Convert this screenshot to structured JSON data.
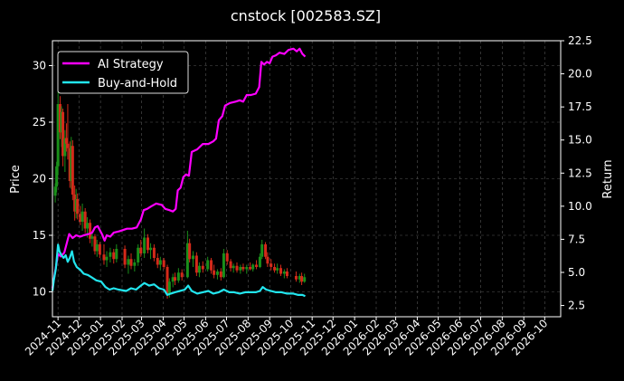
{
  "chart_data": {
    "type": "line",
    "title": "cnstock [002583.SZ]",
    "xlabel": "",
    "ylabel": "Price",
    "y2label": "Return",
    "x_ticks": [
      "2024-11",
      "2024-12",
      "2025-01",
      "2025-02",
      "2025-03",
      "2025-04",
      "2025-05",
      "2025-06",
      "2025-07",
      "2025-08",
      "2025-09",
      "2025-10",
      "2025-11",
      "2025-12",
      "2026-01",
      "2026-02",
      "2026-03",
      "2026-04",
      "2026-05",
      "2026-06",
      "2026-07",
      "2026-08",
      "2026-09",
      "2026-10"
    ],
    "x_range": [
      "2024-10-24",
      "2026-10-24"
    ],
    "y_ticks": [
      10,
      15,
      20,
      25,
      30
    ],
    "ylim": [
      7.8,
      32.2
    ],
    "y2_ticks": [
      "2.5",
      "5.0",
      "7.5",
      "10.0",
      "12.5",
      "15.0",
      "17.5",
      "20.0",
      "22.5"
    ],
    "y2lim": [
      1.65,
      22.5
    ],
    "grid": true,
    "legend_position": "top-left",
    "colors": {
      "background": "#000000",
      "up": "#1a8f1a",
      "down": "#d42a1a",
      "ai": "#ff00ff",
      "bh": "#22e5ee",
      "grid": "#555555"
    },
    "price_candles": [
      [
        "2024-10-28",
        18.5,
        19.6,
        17.9,
        19.3
      ],
      [
        "2024-10-30",
        19.3,
        21.5,
        18.8,
        21.1
      ],
      [
        "2024-11-01",
        21.1,
        28.0,
        20.3,
        26.6
      ],
      [
        "2024-11-04",
        26.6,
        27.3,
        23.5,
        24.1
      ],
      [
        "2024-11-06",
        24.1,
        26.4,
        22.8,
        25.9
      ],
      [
        "2024-11-08",
        25.9,
        26.2,
        21.1,
        22.0
      ],
      [
        "2024-11-11",
        22.0,
        24.3,
        20.6,
        23.6
      ],
      [
        "2024-11-13",
        23.6,
        24.9,
        22.4,
        23.1
      ],
      [
        "2024-11-15",
        23.1,
        26.6,
        21.7,
        22.7
      ],
      [
        "2024-11-18",
        22.7,
        23.3,
        19.2,
        19.8
      ],
      [
        "2024-11-20",
        19.8,
        23.7,
        19.1,
        22.9
      ],
      [
        "2024-11-22",
        22.9,
        23.4,
        18.1,
        18.6
      ],
      [
        "2024-11-25",
        18.6,
        19.4,
        16.3,
        17.1
      ],
      [
        "2024-11-27",
        17.1,
        19.1,
        16.5,
        18.2
      ],
      [
        "2024-11-29",
        18.2,
        18.7,
        16.4,
        16.9
      ],
      [
        "2024-12-03",
        16.9,
        17.6,
        15.9,
        16.2
      ],
      [
        "2024-12-06",
        16.2,
        17.8,
        15.4,
        17.1
      ],
      [
        "2024-12-10",
        17.1,
        17.4,
        15.2,
        15.6
      ],
      [
        "2024-12-13",
        15.6,
        16.6,
        14.8,
        16.1
      ],
      [
        "2024-12-17",
        16.1,
        16.4,
        14.3,
        14.7
      ],
      [
        "2024-12-20",
        14.7,
        15.3,
        14.0,
        14.9
      ],
      [
        "2024-12-24",
        14.9,
        15.1,
        13.3,
        13.6
      ],
      [
        "2024-12-27",
        13.6,
        14.6,
        13.1,
        14.2
      ],
      [
        "2024-12-31",
        14.2,
        14.4,
        13.0,
        13.3
      ],
      [
        "2025-01-06",
        13.3,
        14.2,
        12.4,
        12.8
      ],
      [
        "2025-01-10",
        12.8,
        13.6,
        12.2,
        13.1
      ],
      [
        "2025-01-15",
        13.1,
        13.9,
        12.6,
        13.5
      ],
      [
        "2025-01-20",
        13.5,
        13.8,
        12.5,
        12.9
      ],
      [
        "2025-01-24",
        12.9,
        14.2,
        12.6,
        13.8
      ],
      [
        "2025-02-05",
        13.8,
        14.1,
        12.1,
        12.4
      ],
      [
        "2025-02-10",
        12.4,
        13.2,
        11.6,
        12.9
      ],
      [
        "2025-02-14",
        12.9,
        13.4,
        12.0,
        12.3
      ],
      [
        "2025-02-19",
        12.3,
        12.9,
        11.8,
        12.6
      ],
      [
        "2025-02-24",
        12.6,
        14.2,
        12.3,
        13.9
      ],
      [
        "2025-02-28",
        13.9,
        14.6,
        13.1,
        13.4
      ],
      [
        "2025-03-05",
        13.4,
        15.6,
        13.0,
        14.8
      ],
      [
        "2025-03-10",
        14.8,
        15.1,
        13.4,
        13.7
      ],
      [
        "2025-03-14",
        13.7,
        14.3,
        12.9,
        13.9
      ],
      [
        "2025-03-19",
        13.9,
        14.2,
        12.7,
        13.0
      ],
      [
        "2025-03-24",
        13.0,
        13.4,
        12.1,
        12.4
      ],
      [
        "2025-03-28",
        12.4,
        13.1,
        11.9,
        12.8
      ],
      [
        "2025-04-02",
        12.8,
        13.0,
        12.0,
        12.2
      ],
      [
        "2025-04-07",
        12.2,
        12.4,
        9.4,
        9.8
      ],
      [
        "2025-04-10",
        9.8,
        11.2,
        9.5,
        10.9
      ],
      [
        "2025-04-15",
        10.9,
        11.6,
        10.4,
        11.3
      ],
      [
        "2025-04-18",
        11.3,
        11.7,
        10.6,
        11.0
      ],
      [
        "2025-04-23",
        11.0,
        12.1,
        10.8,
        11.7
      ],
      [
        "2025-04-28",
        11.7,
        12.0,
        11.0,
        11.3
      ],
      [
        "2025-05-06",
        11.3,
        15.4,
        11.2,
        14.3
      ],
      [
        "2025-05-09",
        14.3,
        14.7,
        12.6,
        12.9
      ],
      [
        "2025-05-14",
        12.9,
        13.6,
        12.2,
        13.2
      ],
      [
        "2025-05-19",
        13.2,
        13.5,
        11.4,
        11.7
      ],
      [
        "2025-05-23",
        11.7,
        12.6,
        11.3,
        12.3
      ],
      [
        "2025-05-28",
        12.3,
        12.7,
        11.7,
        12.0
      ],
      [
        "2025-06-04",
        12.0,
        13.1,
        11.8,
        12.8
      ],
      [
        "2025-06-09",
        12.8,
        13.0,
        11.6,
        11.9
      ],
      [
        "2025-06-13",
        11.9,
        12.4,
        11.2,
        11.5
      ],
      [
        "2025-06-18",
        11.5,
        12.0,
        11.1,
        11.8
      ],
      [
        "2025-06-23",
        11.8,
        12.1,
        11.0,
        11.3
      ],
      [
        "2025-06-27",
        11.3,
        13.8,
        11.2,
        13.4
      ],
      [
        "2025-07-02",
        13.4,
        13.7,
        12.4,
        12.7
      ],
      [
        "2025-07-07",
        12.7,
        12.9,
        11.8,
        12.1
      ],
      [
        "2025-07-11",
        12.1,
        12.5,
        11.7,
        12.3
      ],
      [
        "2025-07-16",
        12.3,
        12.6,
        11.7,
        11.9
      ],
      [
        "2025-07-21",
        11.9,
        12.4,
        11.6,
        12.2
      ],
      [
        "2025-07-25",
        12.2,
        12.5,
        11.8,
        12.0
      ],
      [
        "2025-07-30",
        12.0,
        12.4,
        11.6,
        12.2
      ],
      [
        "2025-08-04",
        12.2,
        12.6,
        11.9,
        12.0
      ],
      [
        "2025-08-08",
        12.0,
        12.5,
        11.8,
        12.4
      ],
      [
        "2025-08-13",
        12.4,
        12.8,
        12.0,
        12.2
      ],
      [
        "2025-08-18",
        12.2,
        13.4,
        12.1,
        13.1
      ],
      [
        "2025-08-21",
        13.1,
        14.6,
        12.9,
        14.2
      ],
      [
        "2025-08-26",
        14.2,
        14.4,
        12.9,
        13.1
      ],
      [
        "2025-08-29",
        13.1,
        13.5,
        12.2,
        12.5
      ],
      [
        "2025-09-03",
        12.5,
        12.9,
        11.9,
        12.2
      ],
      [
        "2025-09-08",
        12.2,
        12.5,
        11.7,
        11.9
      ],
      [
        "2025-09-12",
        11.9,
        12.5,
        11.6,
        12.1
      ],
      [
        "2025-09-17",
        12.1,
        12.4,
        11.4,
        11.6
      ],
      [
        "2025-09-22",
        11.6,
        12.0,
        11.2,
        11.8
      ],
      [
        "2025-09-26",
        11.8,
        12.1,
        11.2,
        11.4
      ],
      [
        "2025-10-09",
        11.4,
        11.8,
        10.9,
        11.1
      ],
      [
        "2025-10-14",
        11.1,
        11.6,
        10.8,
        11.4
      ],
      [
        "2025-10-17",
        11.4,
        11.7,
        10.6,
        10.9
      ],
      [
        "2025-10-21",
        10.9,
        11.6,
        10.8,
        11.3
      ]
    ],
    "series": [
      {
        "name": "AI Strategy",
        "points": [
          [
            "2024-10-24",
            3.8
          ],
          [
            "2024-10-29",
            5.4
          ],
          [
            "2024-11-01",
            6.4
          ],
          [
            "2024-11-05",
            6.2
          ],
          [
            "2024-11-10",
            6.5
          ],
          [
            "2024-11-14",
            7.3
          ],
          [
            "2024-11-17",
            7.9
          ],
          [
            "2024-11-22",
            7.6
          ],
          [
            "2024-11-27",
            7.8
          ],
          [
            "2024-12-03",
            7.7
          ],
          [
            "2024-12-08",
            7.8
          ],
          [
            "2024-12-15",
            7.9
          ],
          [
            "2024-12-20",
            8.0
          ],
          [
            "2024-12-24",
            8.4
          ],
          [
            "2024-12-28",
            8.5
          ],
          [
            "2025-01-03",
            7.9
          ],
          [
            "2025-01-07",
            7.4
          ],
          [
            "2025-01-10",
            7.8
          ],
          [
            "2025-01-15",
            7.7
          ],
          [
            "2025-01-20",
            8.0
          ],
          [
            "2025-01-28",
            8.1
          ],
          [
            "2025-02-08",
            8.3
          ],
          [
            "2025-02-15",
            8.3
          ],
          [
            "2025-02-22",
            8.4
          ],
          [
            "2025-02-28",
            9.0
          ],
          [
            "2025-03-04",
            9.7
          ],
          [
            "2025-03-09",
            9.8
          ],
          [
            "2025-03-15",
            10.0
          ],
          [
            "2025-03-22",
            10.2
          ],
          [
            "2025-03-30",
            10.1
          ],
          [
            "2025-04-04",
            9.8
          ],
          [
            "2025-04-10",
            9.7
          ],
          [
            "2025-04-15",
            9.6
          ],
          [
            "2025-04-19",
            9.8
          ],
          [
            "2025-04-22",
            11.2
          ],
          [
            "2025-04-26",
            11.4
          ],
          [
            "2025-04-30",
            12.2
          ],
          [
            "2025-05-04",
            12.4
          ],
          [
            "2025-05-08",
            12.3
          ],
          [
            "2025-05-12",
            14.1
          ],
          [
            "2025-05-20",
            14.3
          ],
          [
            "2025-05-28",
            14.7
          ],
          [
            "2025-06-05",
            14.7
          ],
          [
            "2025-06-12",
            14.9
          ],
          [
            "2025-06-16",
            15.1
          ],
          [
            "2025-06-20",
            16.5
          ],
          [
            "2025-06-25",
            16.8
          ],
          [
            "2025-06-29",
            17.6
          ],
          [
            "2025-07-06",
            17.8
          ],
          [
            "2025-07-14",
            17.9
          ],
          [
            "2025-07-20",
            18.0
          ],
          [
            "2025-07-25",
            17.9
          ],
          [
            "2025-07-30",
            18.4
          ],
          [
            "2025-08-05",
            18.4
          ],
          [
            "2025-08-12",
            18.5
          ],
          [
            "2025-08-17",
            19.0
          ],
          [
            "2025-08-20",
            20.9
          ],
          [
            "2025-08-24",
            20.7
          ],
          [
            "2025-08-28",
            20.9
          ],
          [
            "2025-09-01",
            20.8
          ],
          [
            "2025-09-05",
            21.3
          ],
          [
            "2025-09-10",
            21.4
          ],
          [
            "2025-09-15",
            21.6
          ],
          [
            "2025-09-22",
            21.5
          ],
          [
            "2025-09-28",
            21.8
          ],
          [
            "2025-10-05",
            21.9
          ],
          [
            "2025-10-10",
            21.7
          ],
          [
            "2025-10-14",
            21.9
          ],
          [
            "2025-10-18",
            21.5
          ],
          [
            "2025-10-22",
            21.3
          ]
        ]
      },
      {
        "name": "Buy-and-Hold",
        "points": [
          [
            "2024-10-24",
            3.6
          ],
          [
            "2024-10-26",
            4.4
          ],
          [
            "2024-10-29",
            5.3
          ],
          [
            "2024-11-01",
            7.1
          ],
          [
            "2024-11-03",
            6.6
          ],
          [
            "2024-11-06",
            6.3
          ],
          [
            "2024-11-09",
            6.1
          ],
          [
            "2024-11-12",
            6.3
          ],
          [
            "2024-11-15",
            5.8
          ],
          [
            "2024-11-18",
            6.1
          ],
          [
            "2024-11-21",
            6.6
          ],
          [
            "2024-11-24",
            5.8
          ],
          [
            "2024-11-28",
            5.4
          ],
          [
            "2024-12-03",
            5.2
          ],
          [
            "2024-12-08",
            4.9
          ],
          [
            "2024-12-14",
            4.8
          ],
          [
            "2024-12-20",
            4.6
          ],
          [
            "2024-12-26",
            4.4
          ],
          [
            "2025-01-02",
            4.3
          ],
          [
            "2025-01-08",
            3.9
          ],
          [
            "2025-01-14",
            3.7
          ],
          [
            "2025-01-20",
            3.8
          ],
          [
            "2025-01-27",
            3.7
          ],
          [
            "2025-02-07",
            3.6
          ],
          [
            "2025-02-14",
            3.8
          ],
          [
            "2025-02-21",
            3.7
          ],
          [
            "2025-02-28",
            4.0
          ],
          [
            "2025-03-05",
            4.2
          ],
          [
            "2025-03-12",
            4.0
          ],
          [
            "2025-03-19",
            4.1
          ],
          [
            "2025-03-26",
            3.8
          ],
          [
            "2025-04-02",
            3.7
          ],
          [
            "2025-04-07",
            3.3
          ],
          [
            "2025-04-12",
            3.4
          ],
          [
            "2025-04-18",
            3.5
          ],
          [
            "2025-04-25",
            3.6
          ],
          [
            "2025-05-02",
            3.7
          ],
          [
            "2025-05-07",
            4.0
          ],
          [
            "2025-05-12",
            3.6
          ],
          [
            "2025-05-20",
            3.4
          ],
          [
            "2025-05-28",
            3.5
          ],
          [
            "2025-06-05",
            3.6
          ],
          [
            "2025-06-12",
            3.4
          ],
          [
            "2025-06-20",
            3.5
          ],
          [
            "2025-06-27",
            3.7
          ],
          [
            "2025-07-05",
            3.5
          ],
          [
            "2025-07-12",
            3.5
          ],
          [
            "2025-07-20",
            3.4
          ],
          [
            "2025-07-28",
            3.5
          ],
          [
            "2025-08-05",
            3.5
          ],
          [
            "2025-08-12",
            3.5
          ],
          [
            "2025-08-18",
            3.6
          ],
          [
            "2025-08-22",
            3.9
          ],
          [
            "2025-08-27",
            3.7
          ],
          [
            "2025-09-03",
            3.6
          ],
          [
            "2025-09-10",
            3.5
          ],
          [
            "2025-09-18",
            3.5
          ],
          [
            "2025-09-26",
            3.4
          ],
          [
            "2025-10-05",
            3.4
          ],
          [
            "2025-10-12",
            3.3
          ],
          [
            "2025-10-18",
            3.3
          ],
          [
            "2025-10-22",
            3.2
          ]
        ]
      }
    ]
  }
}
